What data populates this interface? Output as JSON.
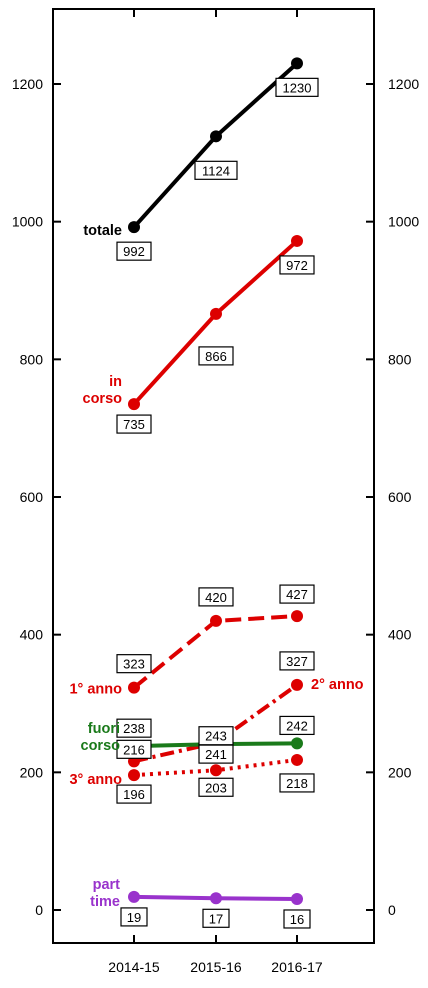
{
  "chart_data": {
    "type": "line",
    "categories": [
      "2014-15",
      "2015-16",
      "2016-17"
    ],
    "ylim": [
      -45,
      1300
    ],
    "yticks": [
      0,
      200,
      400,
      600,
      800,
      1000,
      1200
    ],
    "grid": false,
    "legend": "inline labels",
    "series": [
      {
        "name": "totale",
        "label_lines": [
          "totale"
        ],
        "values": [
          992,
          1124,
          1230
        ],
        "color": "#000000",
        "style": "solid"
      },
      {
        "name": "in corso",
        "label_lines": [
          "in",
          "corso"
        ],
        "values": [
          735,
          866,
          972
        ],
        "color": "#dd0000",
        "style": "solid"
      },
      {
        "name": "1° anno",
        "label_lines": [
          "1° anno"
        ],
        "values": [
          323,
          420,
          427
        ],
        "color": "#dd0000",
        "style": "dashed"
      },
      {
        "name": "2° anno",
        "label_lines": [
          "2° anno"
        ],
        "values": [
          216,
          243,
          327
        ],
        "color": "#dd0000",
        "style": "dashdot"
      },
      {
        "name": "fuori corso",
        "label_lines": [
          "fuori",
          "corso"
        ],
        "values": [
          238,
          241,
          242
        ],
        "color": "#1a7a1a",
        "style": "solid"
      },
      {
        "name": "3° anno",
        "label_lines": [
          "3° anno"
        ],
        "values": [
          196,
          203,
          218
        ],
        "color": "#dd0000",
        "style": "dotted"
      },
      {
        "name": "part time",
        "label_lines": [
          "part",
          "time"
        ],
        "values": [
          19,
          17,
          16
        ],
        "color": "#9933cc",
        "style": "solid"
      }
    ]
  }
}
